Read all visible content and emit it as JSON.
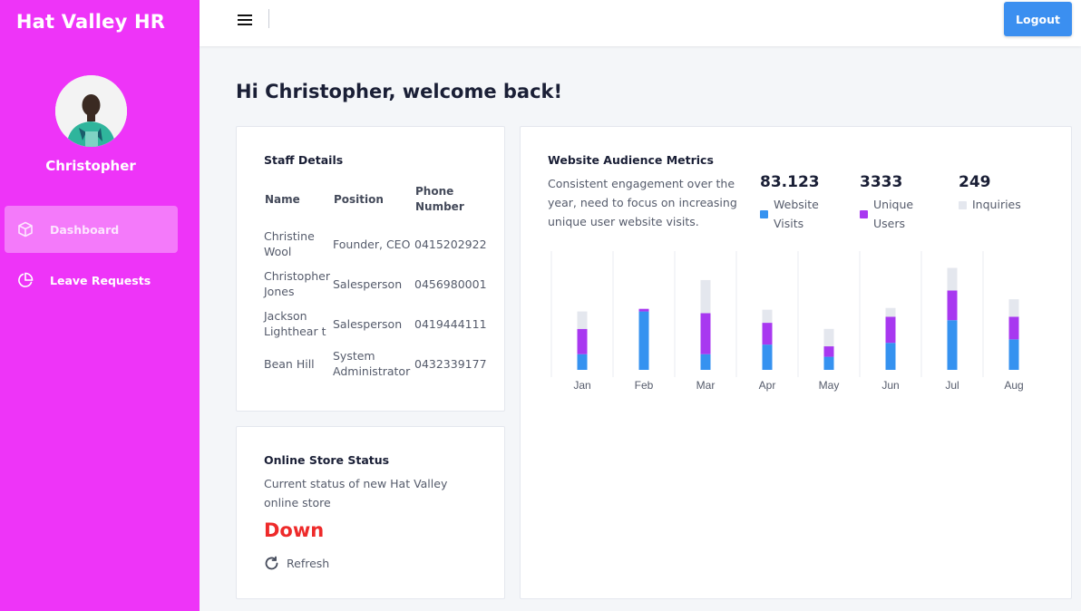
{
  "sidebar": {
    "brand": "Hat Valley HR",
    "username": "Christopher",
    "items": [
      {
        "label": "Dashboard",
        "icon": "cube-icon",
        "active": true
      },
      {
        "label": "Leave Requests",
        "icon": "pie-chart-icon",
        "active": false
      }
    ],
    "color": "#ee34f8"
  },
  "topbar": {
    "menu_icon": "hamburger-menu-icon",
    "logout_label": "Logout"
  },
  "main": {
    "welcome": "Hi Christopher, welcome back!"
  },
  "staff_card": {
    "title": "Staff Details",
    "columns": [
      "Name",
      "Position",
      "Phone Number"
    ],
    "rows": [
      {
        "name": "Christine Wool",
        "position": "Founder, CEO",
        "phone": "0415202922"
      },
      {
        "name": "Christopher Jones",
        "position": "Salesperson",
        "phone": "0456980001"
      },
      {
        "name": "Jackson Lighthear t",
        "position": "Salesperson",
        "phone": "0419444111"
      },
      {
        "name": "Bean Hill",
        "position": "System Administrator",
        "phone": "0432339177"
      }
    ]
  },
  "store_card": {
    "title": "Online Store Status",
    "description": "Current status of new Hat Valley online store",
    "status": "Down",
    "status_color": "#ee2a2a",
    "refresh_label": "Refresh",
    "refresh_icon": "refresh-icon"
  },
  "metrics_card": {
    "title": "Website Audience Metrics",
    "description": "Consistent engagement over the year, need to focus on increasing unique user website visits.",
    "stats": [
      {
        "value": "83.123",
        "label": "Website Visits",
        "color": "#3592f0"
      },
      {
        "value": "3333",
        "label": "Unique Users",
        "color": "#a838f0"
      },
      {
        "value": "249",
        "label": "Inquiries",
        "color": "#e4e7ee"
      }
    ]
  },
  "chart_data": {
    "type": "bar",
    "stacked": true,
    "categories": [
      "Jan",
      "Feb",
      "Mar",
      "Apr",
      "May",
      "Jun",
      "Jul",
      "Aug"
    ],
    "series": [
      {
        "name": "Website Visits",
        "color": "#3592f0",
        "values": [
          18,
          67,
          18,
          29,
          15,
          31,
          57,
          35
        ]
      },
      {
        "name": "Unique Users",
        "color": "#a838f0",
        "values": [
          29,
          3,
          47,
          25,
          12,
          30,
          34,
          26
        ]
      },
      {
        "name": "Inquiries",
        "color": "#e4e7ee",
        "values": [
          20,
          0,
          38,
          15,
          20,
          10,
          26,
          20
        ]
      }
    ],
    "ylim": [
      0,
      130
    ],
    "grid": true
  }
}
